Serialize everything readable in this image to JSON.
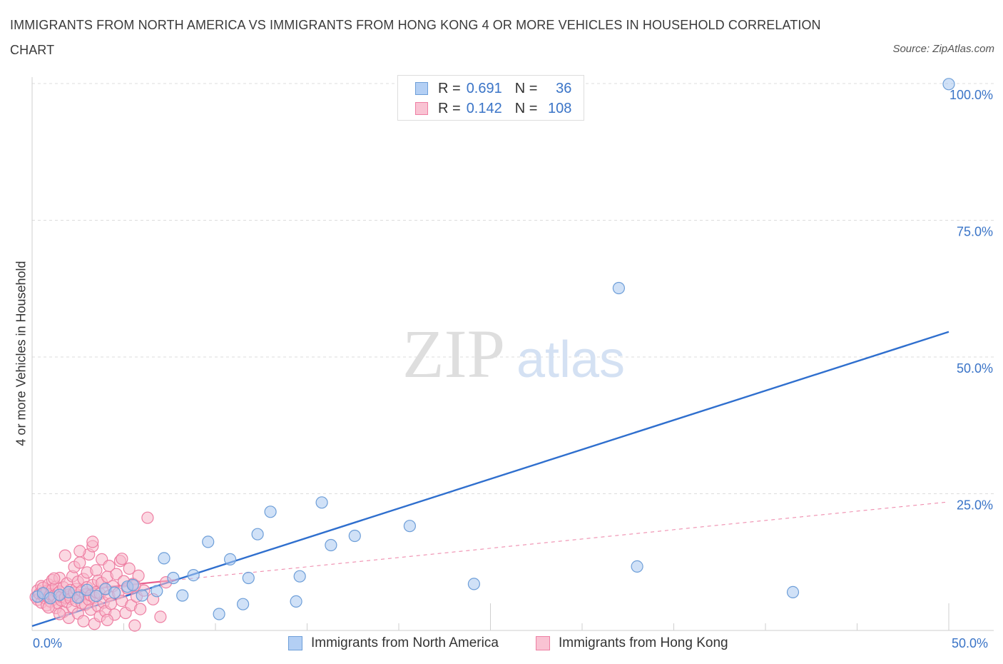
{
  "chart_data": {
    "type": "scatter",
    "title": "IMMIGRANTS FROM NORTH AMERICA VS IMMIGRANTS FROM HONG KONG 4 OR MORE VEHICLES IN HOUSEHOLD CORRELATION CHART",
    "source": "Source: ZipAtlas.com",
    "ylabel": "4 or more Vehicles in Household",
    "xlim": [
      0,
      50
    ],
    "ylim": [
      0,
      100
    ],
    "x_tick_labels": [
      "0.0%",
      "50.0%"
    ],
    "y_tick_labels": [
      "100.0%",
      "75.0%",
      "50.0%",
      "25.0%"
    ],
    "y_tick_values": [
      100,
      75,
      50,
      25
    ],
    "watermark": {
      "zip": "ZIP",
      "atlas": "atlas"
    },
    "legend": [
      {
        "r_label": "R =",
        "r_value": "0.691",
        "n_label": "N =",
        "n_value": "36"
      },
      {
        "r_label": "R =",
        "r_value": "0.142",
        "n_label": "N =",
        "n_value": "108"
      }
    ],
    "series": [
      {
        "name": "Immigrants from North America",
        "color": "#a9c8f0",
        "stroke": "#6d9ed8",
        "line_color": "#2f6fce",
        "trend": {
          "x": [
            0,
            50
          ],
          "y": [
            0.8,
            54.6
          ]
        },
        "points": [
          [
            0.3,
            6.2
          ],
          [
            0.6,
            6.8
          ],
          [
            1.0,
            5.9
          ],
          [
            1.5,
            6.5
          ],
          [
            2.0,
            7.0
          ],
          [
            2.5,
            6.0
          ],
          [
            3.0,
            7.4
          ],
          [
            3.5,
            6.3
          ],
          [
            4.0,
            7.6
          ],
          [
            4.5,
            6.9
          ],
          [
            5.2,
            8.0
          ],
          [
            5.5,
            8.3
          ],
          [
            6.0,
            6.4
          ],
          [
            6.8,
            7.2
          ],
          [
            7.2,
            13.2
          ],
          [
            8.2,
            6.4
          ],
          [
            7.7,
            9.6
          ],
          [
            8.8,
            10.1
          ],
          [
            9.6,
            16.2
          ],
          [
            10.2,
            3.0
          ],
          [
            10.8,
            13.0
          ],
          [
            11.5,
            4.8
          ],
          [
            11.8,
            9.6
          ],
          [
            12.3,
            17.6
          ],
          [
            13.0,
            21.7
          ],
          [
            14.4,
            5.3
          ],
          [
            14.6,
            9.9
          ],
          [
            15.8,
            23.4
          ],
          [
            16.3,
            15.6
          ],
          [
            17.6,
            17.3
          ],
          [
            20.6,
            19.1
          ],
          [
            24.1,
            8.5
          ],
          [
            32.0,
            62.6
          ],
          [
            33.0,
            11.7
          ],
          [
            41.5,
            7.0
          ],
          [
            50.0,
            99.9
          ]
        ]
      },
      {
        "name": "Immigrants from Hong Kong",
        "color": "#f7b8cb",
        "stroke": "#ee7fa3",
        "line_color": "#e8608f",
        "trend_solid": {
          "x": [
            0,
            7.8
          ],
          "y": [
            6.5,
            9.2
          ]
        },
        "trend_dashed": {
          "x": [
            7.8,
            50
          ],
          "y": [
            9.2,
            23.5
          ]
        },
        "points": [
          [
            0.2,
            6.1
          ],
          [
            0.3,
            7.3
          ],
          [
            0.3,
            5.6
          ],
          [
            0.4,
            6.7
          ],
          [
            0.5,
            8.1
          ],
          [
            0.5,
            5.1
          ],
          [
            0.6,
            6.4
          ],
          [
            0.6,
            7.8
          ],
          [
            0.7,
            5.9
          ],
          [
            0.7,
            6.9
          ],
          [
            0.8,
            4.6
          ],
          [
            0.8,
            7.2
          ],
          [
            0.9,
            6.0
          ],
          [
            0.9,
            8.4
          ],
          [
            1.0,
            5.3
          ],
          [
            1.0,
            6.6
          ],
          [
            1.1,
            7.5
          ],
          [
            1.1,
            9.2
          ],
          [
            1.2,
            5.7
          ],
          [
            1.2,
            6.3
          ],
          [
            1.3,
            4.1
          ],
          [
            1.3,
            8.0
          ],
          [
            1.4,
            6.8
          ],
          [
            1.4,
            5.0
          ],
          [
            1.5,
            7.1
          ],
          [
            1.5,
            9.6
          ],
          [
            1.6,
            5.5
          ],
          [
            1.6,
            6.2
          ],
          [
            1.7,
            3.4
          ],
          [
            1.7,
            7.9
          ],
          [
            1.8,
            6.0
          ],
          [
            1.8,
            13.7
          ],
          [
            1.9,
            5.2
          ],
          [
            1.9,
            8.6
          ],
          [
            2.0,
            6.5
          ],
          [
            2.0,
            2.3
          ],
          [
            2.1,
            7.4
          ],
          [
            2.1,
            5.8
          ],
          [
            2.2,
            9.9
          ],
          [
            2.2,
            4.3
          ],
          [
            2.3,
            6.9
          ],
          [
            2.3,
            11.6
          ],
          [
            2.4,
            5.4
          ],
          [
            2.4,
            7.6
          ],
          [
            2.5,
            3.1
          ],
          [
            2.5,
            8.9
          ],
          [
            2.6,
            6.1
          ],
          [
            2.6,
            12.4
          ],
          [
            2.7,
            5.0
          ],
          [
            2.7,
            7.2
          ],
          [
            2.8,
            9.4
          ],
          [
            2.8,
            1.7
          ],
          [
            2.9,
            6.6
          ],
          [
            2.9,
            4.7
          ],
          [
            3.0,
            10.6
          ],
          [
            3.0,
            7.9
          ],
          [
            3.1,
            5.6
          ],
          [
            3.1,
            13.9
          ],
          [
            3.2,
            6.4
          ],
          [
            3.2,
            3.8
          ],
          [
            3.3,
            8.3
          ],
          [
            3.3,
            15.4
          ],
          [
            3.4,
            6.0
          ],
          [
            3.4,
            1.2
          ],
          [
            3.5,
            7.0
          ],
          [
            3.5,
            11.0
          ],
          [
            3.6,
            4.4
          ],
          [
            3.6,
            9.1
          ],
          [
            3.7,
            6.7
          ],
          [
            3.7,
            2.6
          ],
          [
            3.8,
            8.7
          ],
          [
            3.8,
            13.0
          ],
          [
            3.9,
            5.1
          ],
          [
            4.0,
            7.5
          ],
          [
            4.0,
            3.5
          ],
          [
            4.1,
            9.8
          ],
          [
            4.2,
            6.3
          ],
          [
            4.2,
            11.8
          ],
          [
            4.3,
            4.9
          ],
          [
            4.4,
            8.1
          ],
          [
            4.5,
            2.9
          ],
          [
            4.6,
            10.3
          ],
          [
            4.7,
            6.8
          ],
          [
            4.8,
            12.7
          ],
          [
            4.9,
            5.4
          ],
          [
            5.0,
            9.0
          ],
          [
            5.1,
            3.2
          ],
          [
            5.2,
            7.7
          ],
          [
            5.3,
            11.3
          ],
          [
            5.4,
            4.6
          ],
          [
            5.5,
            8.5
          ],
          [
            5.6,
            0.9
          ],
          [
            5.7,
            6.2
          ],
          [
            5.8,
            10.0
          ],
          [
            5.9,
            3.9
          ],
          [
            6.1,
            7.3
          ],
          [
            6.3,
            20.6
          ],
          [
            6.6,
            5.7
          ],
          [
            7.0,
            2.5
          ],
          [
            7.3,
            8.8
          ],
          [
            3.3,
            16.2
          ],
          [
            2.6,
            14.5
          ],
          [
            4.9,
            13.1
          ],
          [
            1.2,
            9.5
          ],
          [
            0.9,
            4.2
          ],
          [
            1.5,
            3.0
          ],
          [
            4.1,
            1.9
          ],
          [
            5.6,
            8.2
          ]
        ]
      }
    ]
  }
}
